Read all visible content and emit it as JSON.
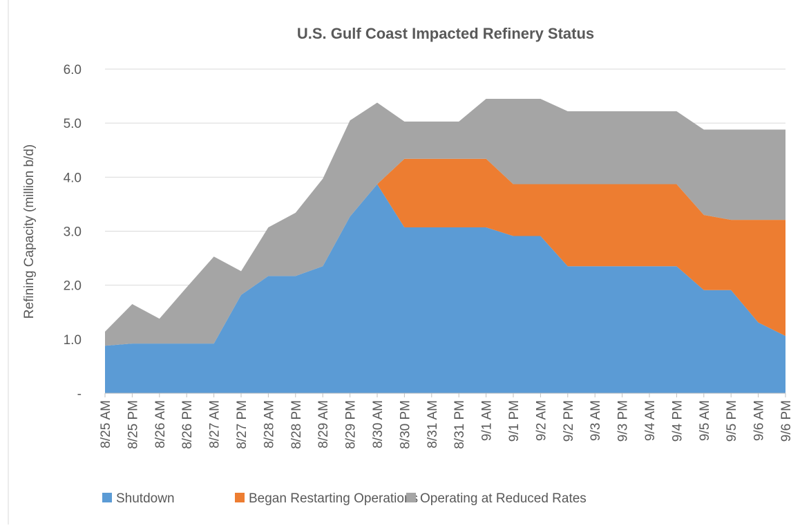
{
  "chart_data": {
    "type": "stacked-area",
    "title": "U.S. Gulf Coast Impacted Refinery Status",
    "y_label": "Refining Capacity (million b/d)",
    "categories": [
      "8/25 AM",
      "8/25 PM",
      "8/26 AM",
      "8/26 PM",
      "8/27 AM",
      "8/27 PM",
      "8/28 AM",
      "8/28 PM",
      "8/29 AM",
      "8/29 PM",
      "8/30 AM",
      "8/30 PM",
      "8/31 AM",
      "8/31 PM",
      "9/1 AM",
      "9/1 PM",
      "9/2 AM",
      "9/2 PM",
      "9/3 AM",
      "9/3 PM",
      "9/4 AM",
      "9/4 PM",
      "9/5 AM",
      "9/5 PM",
      "9/6 AM",
      "9/6 PM"
    ],
    "series": [
      {
        "name": "Shutdown",
        "color": "#5b9bd5",
        "values": [
          0.88,
          0.92,
          0.92,
          0.92,
          0.92,
          1.82,
          2.17,
          2.17,
          2.35,
          3.27,
          3.87,
          3.07,
          3.07,
          3.07,
          3.07,
          2.91,
          2.91,
          2.35,
          2.35,
          2.35,
          2.35,
          2.35,
          1.91,
          1.91,
          1.31,
          1.06
        ]
      },
      {
        "name": "Began Restarting Operations",
        "color": "#ed7d31",
        "values": [
          0,
          0,
          0,
          0,
          0,
          0,
          0,
          0,
          0,
          0,
          0,
          1.27,
          1.27,
          1.27,
          1.27,
          0.96,
          0.96,
          1.52,
          1.52,
          1.52,
          1.52,
          1.52,
          1.39,
          1.3,
          1.9,
          2.15
        ]
      },
      {
        "name": "Operating at Reduced Rates",
        "color": "#a5a5a5",
        "values": [
          0.26,
          0.73,
          0.46,
          1.04,
          1.61,
          0.44,
          0.9,
          1.17,
          1.62,
          1.78,
          1.51,
          0.69,
          0.69,
          0.69,
          1.11,
          1.58,
          1.58,
          1.35,
          1.35,
          1.35,
          1.35,
          1.35,
          1.58,
          1.67,
          1.67,
          1.67
        ]
      }
    ],
    "ylim": [
      0,
      6
    ],
    "yticks": [
      {
        "value": 0,
        "label": "-"
      },
      {
        "value": 1,
        "label": "1.0"
      },
      {
        "value": 2,
        "label": "2.0"
      },
      {
        "value": 3,
        "label": "3.0"
      },
      {
        "value": 4,
        "label": "4.0"
      },
      {
        "value": 5,
        "label": "5.0"
      },
      {
        "value": 6,
        "label": "6.0"
      }
    ],
    "grid": true,
    "legend": "bottom"
  }
}
